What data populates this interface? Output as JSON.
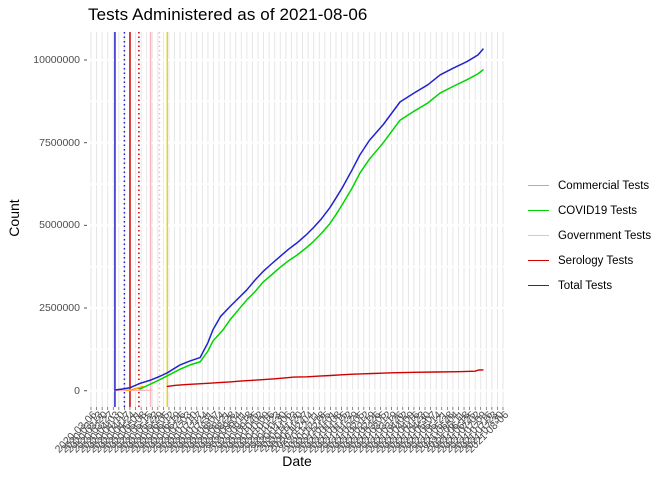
{
  "chart_data": {
    "type": "line",
    "title": "Tests Administered as of 2021-08-06",
    "xlabel": "Date",
    "ylabel": "Count",
    "ylim": [
      0,
      10850000
    ],
    "yticks": [
      0,
      2500000,
      5000000,
      7500000,
      10000000
    ],
    "ytick_labels": [
      "0",
      "2500000",
      "5000000",
      "7500000",
      "10000000"
    ],
    "grid": "dense vertical gridline per date; light horizontal major/minor lines",
    "legend_position": "right",
    "x_dates": [
      "2020-03-06",
      "2020-03-13",
      "2020-03-20",
      "2020-03-27",
      "2020-04-03",
      "2020-04-10",
      "2020-04-17",
      "2020-04-24",
      "2020-05-01",
      "2020-05-08",
      "2020-05-15",
      "2020-05-22",
      "2020-05-29",
      "2020-06-05",
      "2020-06-12",
      "2020-06-19",
      "2020-06-26",
      "2020-07-03",
      "2020-07-10",
      "2020-07-17",
      "2020-07-24",
      "2020-07-31",
      "2020-08-07",
      "2020-08-14",
      "2020-08-21",
      "2020-08-28",
      "2020-09-04",
      "2020-09-11",
      "2020-09-18",
      "2020-09-25",
      "2020-10-02",
      "2020-10-09",
      "2020-10-16",
      "2020-10-23",
      "2020-10-30",
      "2020-11-06",
      "2020-11-13",
      "2020-11-20",
      "2020-11-27",
      "2020-12-04",
      "2020-12-11",
      "2020-12-18",
      "2020-12-25",
      "2021-01-01",
      "2021-01-08",
      "2021-01-15",
      "2021-01-22",
      "2021-01-29",
      "2021-02-05",
      "2021-02-12",
      "2021-02-19",
      "2021-02-26",
      "2021-03-05",
      "2021-03-12",
      "2021-03-19",
      "2021-03-26",
      "2021-04-02",
      "2021-04-09",
      "2021-04-16",
      "2021-04-23",
      "2021-04-30",
      "2021-05-07",
      "2021-05-14",
      "2021-05-21",
      "2021-05-28",
      "2021-06-04",
      "2021-06-11",
      "2021-06-18",
      "2021-06-25",
      "2021-07-02",
      "2021-07-09",
      "2021-07-16",
      "2021-07-23",
      "2021-07-30",
      "2021-08-06"
    ],
    "series": [
      {
        "name": "Commercial Tests",
        "color": "#FFA500",
        "width": 1.5,
        "points": [
          [
            6.4,
            10000
          ],
          [
            7.5,
            40000
          ],
          [
            8.6,
            90000
          ],
          [
            9.3,
            130000
          ]
        ]
      },
      {
        "name": "COVID19 Tests",
        "color": "#00D500",
        "width": 1.5,
        "points": [
          [
            8.8,
            50000
          ],
          [
            10.7,
            200000
          ],
          [
            12.3,
            330000
          ],
          [
            13.7,
            450000
          ],
          [
            16,
            650000
          ],
          [
            17.8,
            780000
          ],
          [
            19.6,
            870000
          ],
          [
            21,
            1200000
          ],
          [
            21.9,
            1500000
          ],
          [
            23.7,
            1840000
          ],
          [
            25,
            2150000
          ],
          [
            26.5,
            2450000
          ],
          [
            28,
            2750000
          ],
          [
            29.5,
            3000000
          ],
          [
            30.9,
            3280000
          ],
          [
            32.4,
            3500000
          ],
          [
            33.9,
            3720000
          ],
          [
            35.5,
            3930000
          ],
          [
            37,
            4100000
          ],
          [
            38.5,
            4300000
          ],
          [
            39.9,
            4500000
          ],
          [
            41.4,
            4760000
          ],
          [
            42.9,
            5050000
          ],
          [
            44.1,
            5350000
          ],
          [
            45.2,
            5650000
          ],
          [
            46.8,
            6100000
          ],
          [
            48.3,
            6580000
          ],
          [
            50,
            7000000
          ],
          [
            52.5,
            7500000
          ],
          [
            55.5,
            8180000
          ],
          [
            58,
            8450000
          ],
          [
            60.5,
            8700000
          ],
          [
            62.7,
            9000000
          ],
          [
            65,
            9200000
          ],
          [
            67.5,
            9400000
          ],
          [
            69.5,
            9580000
          ],
          [
            70.4,
            9700000
          ]
        ]
      },
      {
        "name": "Government Tests",
        "color": "#FFB6C1",
        "width": 1.4,
        "points": [
          [
            4.3,
            8000
          ],
          [
            6,
            10000
          ],
          [
            8,
            11000
          ],
          [
            10,
            12000
          ],
          [
            11,
            12000
          ]
        ]
      },
      {
        "name": "Serology Tests",
        "color": "#D10000",
        "width": 1.4,
        "points": [
          [
            13.7,
            130000
          ],
          [
            15,
            160000
          ],
          [
            17,
            185000
          ],
          [
            19,
            205000
          ],
          [
            21,
            225000
          ],
          [
            23,
            245000
          ],
          [
            25,
            265000
          ],
          [
            26.8,
            290000
          ],
          [
            29,
            315000
          ],
          [
            31,
            335000
          ],
          [
            33,
            360000
          ],
          [
            35,
            390000
          ],
          [
            36.5,
            410000
          ],
          [
            38.8,
            420000
          ],
          [
            41,
            440000
          ],
          [
            43,
            460000
          ],
          [
            45,
            480000
          ],
          [
            47,
            500000
          ],
          [
            49,
            510000
          ],
          [
            50.6,
            520000
          ],
          [
            54,
            540000
          ],
          [
            58,
            555000
          ],
          [
            62,
            565000
          ],
          [
            66,
            575000
          ],
          [
            69,
            590000
          ],
          [
            69.6,
            625000
          ],
          [
            70.4,
            630000
          ]
        ]
      },
      {
        "name": "Total Tests",
        "color": "#2222CC",
        "width": 1.5,
        "points": [
          [
            4.3,
            20000
          ],
          [
            6,
            60000
          ],
          [
            7,
            90000
          ],
          [
            8.8,
            220000
          ],
          [
            10.7,
            320000
          ],
          [
            12.3,
            430000
          ],
          [
            13.7,
            540000
          ],
          [
            16,
            780000
          ],
          [
            17.8,
            900000
          ],
          [
            19.6,
            1000000
          ],
          [
            21,
            1450000
          ],
          [
            21.9,
            1840000
          ],
          [
            23.3,
            2250000
          ],
          [
            25,
            2550000
          ],
          [
            26.5,
            2800000
          ],
          [
            28,
            3050000
          ],
          [
            29.5,
            3350000
          ],
          [
            30.9,
            3600000
          ],
          [
            32.4,
            3830000
          ],
          [
            33.9,
            4050000
          ],
          [
            35.5,
            4280000
          ],
          [
            37,
            4470000
          ],
          [
            38.5,
            4690000
          ],
          [
            39.9,
            4920000
          ],
          [
            41.4,
            5200000
          ],
          [
            42.9,
            5530000
          ],
          [
            44.1,
            5850000
          ],
          [
            45.2,
            6160000
          ],
          [
            46.8,
            6650000
          ],
          [
            48.3,
            7130000
          ],
          [
            50,
            7570000
          ],
          [
            52.5,
            8050000
          ],
          [
            55.5,
            8730000
          ],
          [
            58,
            9000000
          ],
          [
            60.5,
            9250000
          ],
          [
            62.7,
            9550000
          ],
          [
            65,
            9750000
          ],
          [
            67.5,
            9950000
          ],
          [
            69.5,
            10150000
          ],
          [
            70.4,
            10330000
          ]
        ]
      }
    ],
    "vlines": [
      {
        "color": "#2222CC",
        "style": "solid",
        "x_index": 4.3
      },
      {
        "color": "#2222CC",
        "style": "dotted",
        "x_index": 6.0
      },
      {
        "color": "#D10000",
        "style": "solid",
        "x_index": 7.0
      },
      {
        "color": "#D10000",
        "style": "dotted",
        "x_index": 8.6
      },
      {
        "color": "#FFB6C1",
        "style": "solid",
        "x_index": 10.7
      },
      {
        "color": "#FFB6C1",
        "style": "dotted",
        "x_index": 12.3
      },
      {
        "color": "#EED31C",
        "style": "solid",
        "x_index": 13.7
      }
    ],
    "legend": [
      {
        "label": "Commercial Tests",
        "color": "#FFA500"
      },
      {
        "label": "COVID19 Tests",
        "color": "#00D500"
      },
      {
        "label": "Government Tests",
        "color": "#FFB6C1"
      },
      {
        "label": "Serology Tests",
        "color": "#D10000"
      },
      {
        "label": "Total Tests",
        "color": "#2222CC"
      }
    ],
    "colors": {
      "gridline_vertical": "#E3E3E3",
      "gridline_horizontal": "#FFFFFF",
      "tick_label": "#4d4d4d",
      "background": "#FFFFFF"
    }
  }
}
